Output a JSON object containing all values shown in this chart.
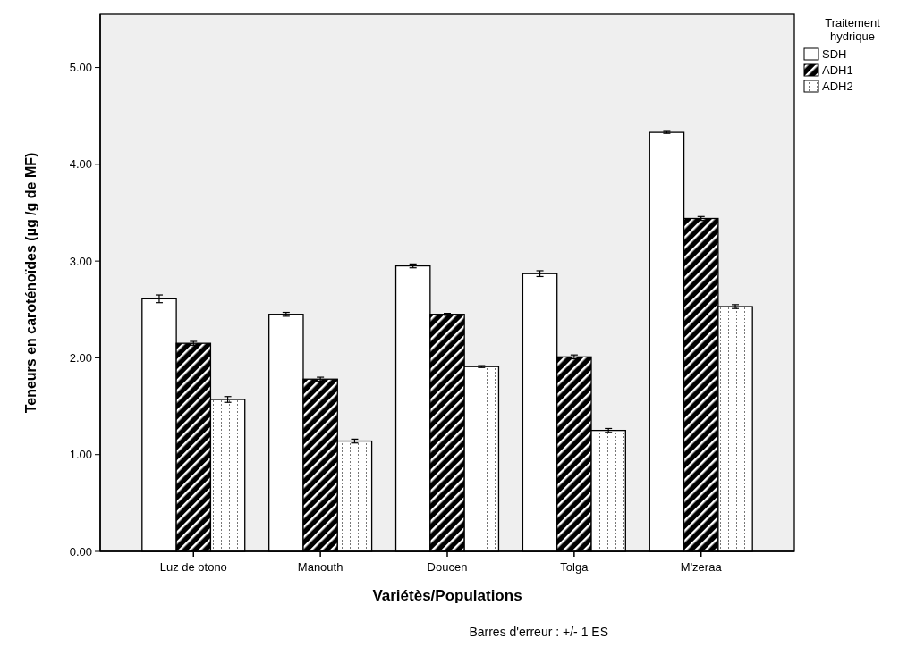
{
  "chart_data": {
    "type": "bar",
    "xlabel": "Variétès/Populations",
    "ylabel": "Teneurs en caroténoïdes (µg /g de MF)",
    "legend_title": "Traitement hydrique",
    "categories": [
      "Luz de otono",
      "Manouth",
      "Doucen",
      "Tolga",
      "M'zeraa"
    ],
    "series": [
      {
        "name": "SDH",
        "color": "#ffffff",
        "values": [
          2.61,
          2.45,
          2.95,
          2.87,
          4.33
        ],
        "errors": [
          0.04,
          0.02,
          0.02,
          0.03,
          0.01
        ]
      },
      {
        "name": "ADH1",
        "color": "#000000",
        "values": [
          2.15,
          1.78,
          2.45,
          2.01,
          3.44
        ],
        "errors": [
          0.02,
          0.02,
          0.01,
          0.02,
          0.02
        ]
      },
      {
        "name": "ADH2",
        "color": "#ffffff",
        "values": [
          1.57,
          1.14,
          1.91,
          1.25,
          2.53
        ],
        "errors": [
          0.03,
          0.02,
          0.01,
          0.02,
          0.02
        ]
      }
    ],
    "ylim": [
      0,
      5.55
    ],
    "yticks": [
      {
        "value": 0,
        "label": "0.00"
      },
      {
        "value": 1,
        "label": "1.00"
      },
      {
        "value": 2,
        "label": "2.00"
      },
      {
        "value": 3,
        "label": "3.00"
      },
      {
        "value": 4,
        "label": "4.00"
      },
      {
        "value": 5,
        "label": "5.00"
      }
    ],
    "legend": "top right",
    "grid": false,
    "annotations": [
      "Barres d'erreur : +/- 1 ES"
    ]
  }
}
